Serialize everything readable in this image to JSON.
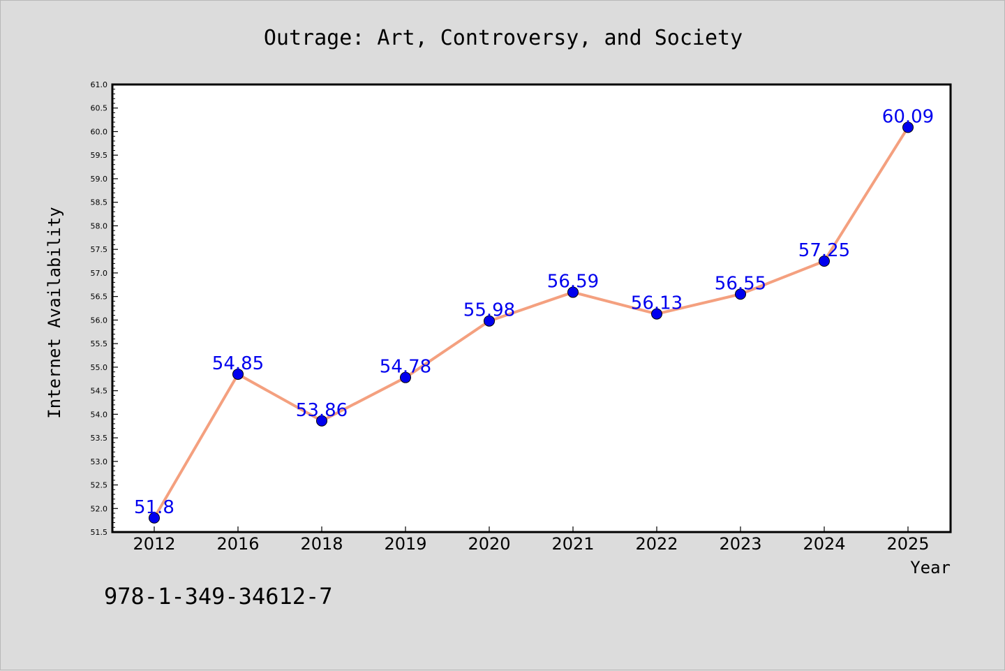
{
  "chart_data": {
    "type": "line",
    "title": "Outrage: Art, Controversy, and Society",
    "xlabel": "Year",
    "ylabel": "Internet Availability",
    "categories": [
      "2012",
      "2016",
      "2018",
      "2019",
      "2020",
      "2021",
      "2022",
      "2023",
      "2024",
      "2025"
    ],
    "values": [
      51.8,
      54.85,
      53.86,
      54.78,
      55.98,
      56.59,
      56.13,
      56.55,
      57.25,
      60.09
    ],
    "data_labels": [
      "51.8",
      "54.85",
      "53.86",
      "54.78",
      "55.98",
      "56.59",
      "56.13",
      "56.55",
      "57.25",
      "60.09"
    ],
    "ylim": [
      51.5,
      61.0
    ],
    "yticks": [
      "51.5",
      "52.0",
      "52.5",
      "53.0",
      "53.5",
      "54.0",
      "54.5",
      "55.0",
      "55.5",
      "56.0",
      "56.5",
      "57.0",
      "57.5",
      "58.0",
      "58.5",
      "59.0",
      "59.5",
      "60.0",
      "60.5",
      "61.0"
    ],
    "line_color": "#f4a07f",
    "marker_color": "#0000ee",
    "label_color": "#0000ee",
    "background_color": "#dcdcdc",
    "plot_background": "#ffffff",
    "grid": false,
    "legend": "none"
  },
  "footer": {
    "code": "978-1-349-34612-7"
  }
}
